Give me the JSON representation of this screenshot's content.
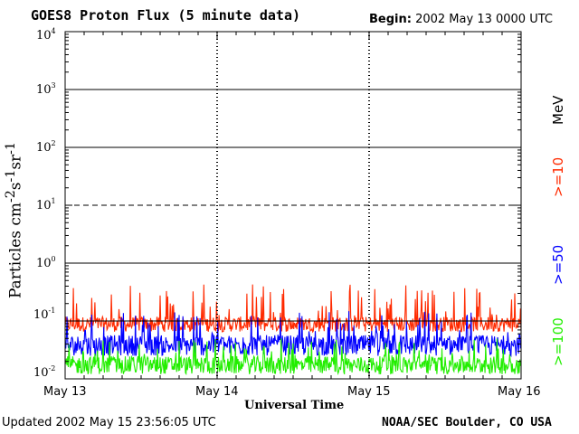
{
  "header": {
    "title": "GOES8 Proton Flux (5 minute data)",
    "begin_label": "Begin:",
    "begin_value": "2002 May 13 0000 UTC"
  },
  "footer": {
    "updated_label": "Updated",
    "updated_value": "2002 May 15 23:56:05 UTC",
    "credit": "NOAA/SEC Boulder, CO USA"
  },
  "chart_data": {
    "type": "line",
    "title": "GOES8 Proton Flux (5 minute data)",
    "xlabel": "Universal Time",
    "ylabel_main": "Particles cm",
    "ylabel_parts": [
      {
        "base": "Particles cm",
        "exp": "-2"
      },
      {
        "base": "s",
        "exp": "-1"
      },
      {
        "base": "sr",
        "exp": "-1"
      }
    ],
    "y_scale": "log",
    "ylim": [
      0.01,
      10000
    ],
    "y_ticks": [
      {
        "base": "10",
        "exp": "-2",
        "value": 0.01
      },
      {
        "base": "10",
        "exp": "-1",
        "value": 0.1
      },
      {
        "base": "10",
        "exp": "0",
        "value": 1
      },
      {
        "base": "10",
        "exp": "1",
        "value": 10
      },
      {
        "base": "10",
        "exp": "2",
        "value": 100
      },
      {
        "base": "10",
        "exp": "3",
        "value": 1000
      },
      {
        "base": "10",
        "exp": "4",
        "value": 10000
      }
    ],
    "x_ticks": [
      "May 13",
      "May 14",
      "May 15",
      "May 16"
    ],
    "xlim_days": [
      0,
      3
    ],
    "threshold_solid": [
      1,
      100,
      1000
    ],
    "threshold_dashed": [
      10
    ],
    "series_labels_unit": "MeV",
    "series": [
      {
        "name": ">=10",
        "color": "#ff2a00",
        "typical": 0.1,
        "low": 0.065,
        "high": 0.45
      },
      {
        "name": ">=50",
        "color": "#0000ff",
        "typical": 0.045,
        "low": 0.025,
        "high": 0.15
      },
      {
        "name": ">=100",
        "color": "#22ee00",
        "typical": 0.02,
        "low": 0.012,
        "high": 0.05
      }
    ]
  }
}
